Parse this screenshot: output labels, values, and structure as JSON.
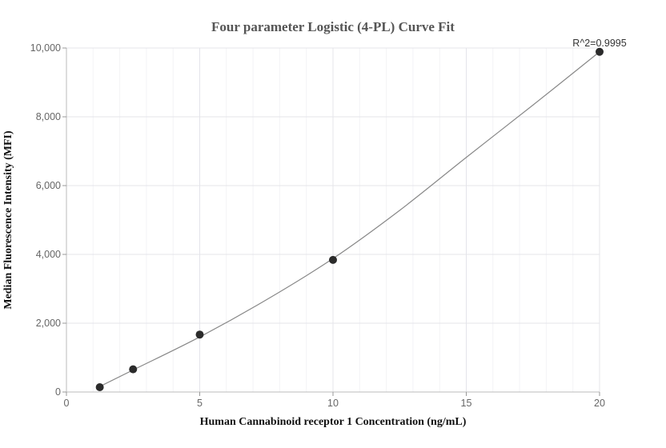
{
  "chart_data": {
    "type": "scatter",
    "title": "Four parameter Logistic (4-PL) Curve Fit",
    "xlabel": "Human Cannabinoid receptor 1 Concentration (ng/mL)",
    "ylabel": "Median Fluorescence Intensity (MFI)",
    "xlim": [
      0,
      20
    ],
    "ylim": [
      0,
      10000
    ],
    "x_ticks": [
      0,
      5,
      10,
      15,
      20
    ],
    "x_tick_labels": [
      "0",
      "5",
      "10",
      "15",
      "20"
    ],
    "y_ticks": [
      0,
      2000,
      4000,
      6000,
      8000,
      10000
    ],
    "y_tick_labels": [
      "0",
      "2,000",
      "4,000",
      "6,000",
      "8,000",
      "10,000"
    ],
    "grid": true,
    "points": {
      "x": [
        1.25,
        2.5,
        5,
        10,
        20
      ],
      "y": [
        140,
        660,
        1670,
        3840,
        9890
      ]
    },
    "fit_curve": {
      "x": [
        1.25,
        2.5,
        5,
        7.5,
        10,
        12.5,
        15,
        17.5,
        20
      ],
      "y": [
        160,
        640,
        1600,
        2680,
        3880,
        5280,
        6820,
        8340,
        9890
      ]
    },
    "annotation": "R^2=0.9995",
    "colors": {
      "points": "#2b2b2b",
      "curve": "#888888",
      "title": "#555555"
    }
  }
}
